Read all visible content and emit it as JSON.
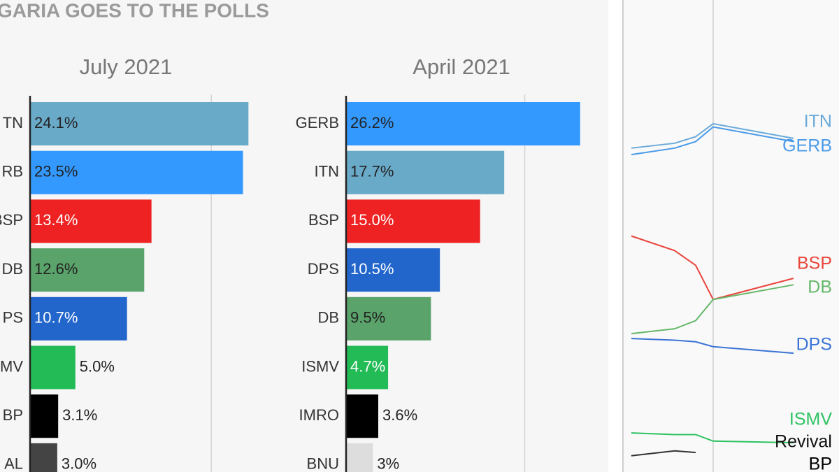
{
  "header": {
    "title": "GARIA GOES TO THE POLLS"
  },
  "chart_data": [
    {
      "type": "bar",
      "title": "July 2021",
      "categories": [
        "TN",
        "RB",
        "BSP",
        "DB",
        "PS",
        "SMV",
        "BP",
        "AL"
      ],
      "values": [
        24.1,
        23.5,
        13.4,
        12.6,
        10.7,
        5.0,
        3.1,
        3.0
      ],
      "value_labels": [
        "24.1%",
        "23.5%",
        "13.4%",
        "12.6%",
        "10.7%",
        "5.0%",
        "3.1%",
        "3.0%"
      ],
      "colors": [
        "#6aaac9",
        "#3399ff",
        "#ee2222",
        "#5aa36a",
        "#2266cc",
        "#22bb55",
        "#000000",
        "#444444"
      ],
      "xlim": [
        0,
        25
      ],
      "gridlines": [
        20
      ]
    },
    {
      "type": "bar",
      "title": "April 2021",
      "categories": [
        "GERB",
        "ITN",
        "BSP",
        "DPS",
        "DB",
        "ISMV",
        "IMRO",
        "BNU"
      ],
      "values": [
        26.2,
        17.7,
        15.0,
        10.5,
        9.5,
        4.7,
        3.6,
        3
      ],
      "value_labels": [
        "26.2%",
        "17.7%",
        "15.0%",
        "10.5%",
        "9.5%",
        "4.7%",
        "3.6%",
        "3%"
      ],
      "colors": [
        "#3399ff",
        "#6aaac9",
        "#ee2222",
        "#2266cc",
        "#5aa36a",
        "#22bb55",
        "#000000",
        "#dddddd"
      ],
      "xlim": [
        0,
        27
      ],
      "gridlines": [
        20
      ]
    },
    {
      "type": "line",
      "categories": [
        null,
        null,
        null,
        null,
        null
      ],
      "ylim": [
        3,
        32
      ],
      "series": [
        {
          "name": "ITN",
          "color": "#6aaad9",
          "values": [
            22.9,
            23.2,
            23.6,
            24.4,
            23.5
          ]
        },
        {
          "name": "GERB",
          "color": "#4a9ae8",
          "values": [
            22.5,
            22.9,
            23.3,
            24.2,
            23.3
          ]
        },
        {
          "name": "BSP",
          "color": "#e8463c",
          "values": [
            17.5,
            16.6,
            15.7,
            13.6,
            14.9
          ]
        },
        {
          "name": "DB",
          "color": "#66b86a",
          "values": [
            11.5,
            11.8,
            12.3,
            13.6,
            14.5
          ]
        },
        {
          "name": "DPS",
          "color": "#3b74d6",
          "values": [
            11.2,
            11.1,
            11.0,
            10.7,
            10.3
          ]
        },
        {
          "name": "ISMV",
          "color": "#2ec262",
          "values": [
            5.4,
            5.3,
            5.3,
            4.9,
            4.8
          ]
        },
        {
          "name": "Revival",
          "color": "#333333",
          "values": [
            4.0,
            4.3,
            4.2,
            null,
            null
          ]
        },
        {
          "name": "BP",
          "color": "#000000",
          "values": [
            null,
            null,
            null,
            null,
            null
          ]
        }
      ]
    }
  ]
}
